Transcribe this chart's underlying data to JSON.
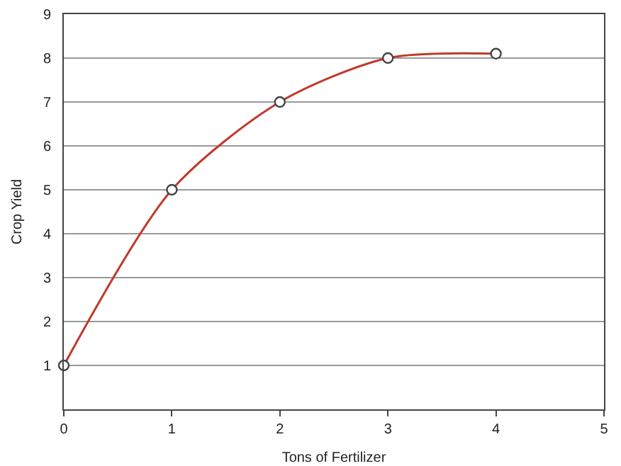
{
  "chart_data": {
    "type": "line",
    "xlabel": "Tons of Fertilizer",
    "ylabel": "Crop Yield",
    "x": [
      0,
      1,
      2,
      3,
      4
    ],
    "series": [
      {
        "color": "#c0392b",
        "values": [
          1,
          5,
          7,
          8,
          8.1
        ]
      }
    ],
    "xlim": [
      0,
      5
    ],
    "xticks": [
      0,
      1,
      2,
      3,
      4,
      5
    ],
    "ylim": [
      0,
      9
    ],
    "yticks": [
      1,
      2,
      3,
      4,
      5,
      6,
      7,
      8,
      9
    ],
    "grid": "y",
    "marker": "circle",
    "line_style": "solid"
  }
}
